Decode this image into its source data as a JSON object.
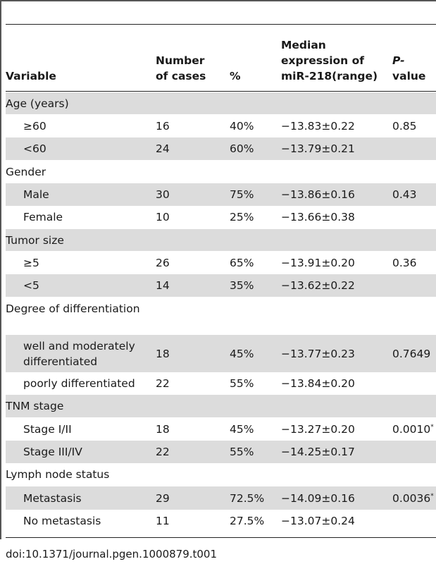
{
  "table": {
    "columns": [
      {
        "label": "Variable"
      },
      {
        "label": "Number of cases"
      },
      {
        "label": "%"
      },
      {
        "label": "Median expression of miR-218(range)"
      },
      {
        "label_italic": "P-",
        "label_rest": "value"
      }
    ],
    "rows": [
      {
        "variable": "Age (years)",
        "cases": "",
        "pct": "",
        "median": "",
        "p": "",
        "p_mark": "",
        "type": "group"
      },
      {
        "variable": "≥60",
        "cases": "16",
        "pct": "40%",
        "median": "−13.83±0.22",
        "p": "0.85",
        "p_mark": "",
        "type": "item"
      },
      {
        "variable": "<60",
        "cases": "24",
        "pct": "60%",
        "median": "−13.79±0.21",
        "p": "",
        "p_mark": "",
        "type": "item"
      },
      {
        "variable": "Gender",
        "cases": "",
        "pct": "",
        "median": "",
        "p": "",
        "p_mark": "",
        "type": "group"
      },
      {
        "variable": "Male",
        "cases": "30",
        "pct": "75%",
        "median": "−13.86±0.16",
        "p": "0.43",
        "p_mark": "",
        "type": "item"
      },
      {
        "variable": "Female",
        "cases": "10",
        "pct": "25%",
        "median": "−13.66±0.38",
        "p": "",
        "p_mark": "",
        "type": "item"
      },
      {
        "variable": "Tumor size",
        "cases": "",
        "pct": "",
        "median": "",
        "p": "",
        "p_mark": "",
        "type": "group"
      },
      {
        "variable": "≥5",
        "cases": "26",
        "pct": "65%",
        "median": "−13.91±0.20",
        "p": "0.36",
        "p_mark": "",
        "type": "item"
      },
      {
        "variable": "<5",
        "cases": "14",
        "pct": "35%",
        "median": "−13.62±0.22",
        "p": "",
        "p_mark": "",
        "type": "item"
      },
      {
        "variable": "Degree of differentiation",
        "cases": "",
        "pct": "",
        "median": "",
        "p": "",
        "p_mark": "",
        "type": "group"
      },
      {
        "variable": "well and moderately differentiated",
        "cases": "18",
        "pct": "45%",
        "median": "−13.77±0.23",
        "p": "0.7649",
        "p_mark": "",
        "type": "item"
      },
      {
        "variable": "poorly differentiated",
        "cases": "22",
        "pct": "55%",
        "median": "−13.84±0.20",
        "p": "",
        "p_mark": "",
        "type": "item"
      },
      {
        "variable": "TNM stage",
        "cases": "",
        "pct": "",
        "median": "",
        "p": "",
        "p_mark": "",
        "type": "group"
      },
      {
        "variable": "Stage I/II",
        "cases": "18",
        "pct": "45%",
        "median": "−13.27±0.20",
        "p": "0.0010",
        "p_mark": "*",
        "type": "item"
      },
      {
        "variable": "Stage III/IV",
        "cases": "22",
        "pct": "55%",
        "median": "−14.25±0.17",
        "p": "",
        "p_mark": "",
        "type": "item"
      },
      {
        "variable": "Lymph node status",
        "cases": "",
        "pct": "",
        "median": "",
        "p": "",
        "p_mark": "",
        "type": "group"
      },
      {
        "variable": "Metastasis",
        "cases": "29",
        "pct": "72.5%",
        "median": "−14.09±0.16",
        "p": "0.0036",
        "p_mark": "*",
        "type": "item"
      },
      {
        "variable": "No metastasis",
        "cases": "11",
        "pct": "27.5%",
        "median": "−13.07±0.24",
        "p": "",
        "p_mark": "",
        "type": "item"
      }
    ]
  },
  "footer": {
    "doi": "doi:10.1371/journal.pgen.1000879.t001"
  }
}
